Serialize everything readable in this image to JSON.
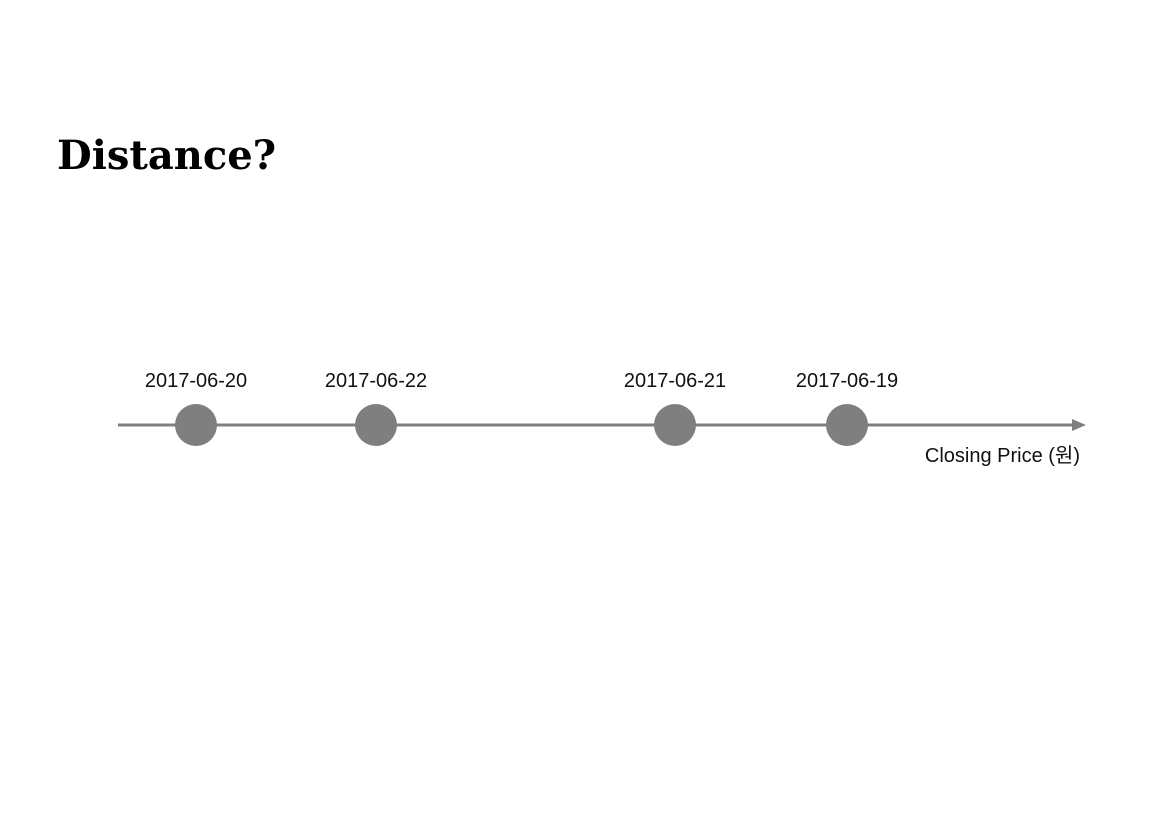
{
  "title": "Distance?",
  "colors": {
    "axis": "#7f7f7f",
    "point": "#7f7f7f",
    "text": "#111111"
  },
  "chart_data": {
    "type": "scatter",
    "xlabel": "Closing Price (원)",
    "ylabel": "",
    "points": [
      {
        "label": "2017-06-20",
        "order": 1
      },
      {
        "label": "2017-06-22",
        "order": 2
      },
      {
        "label": "2017-06-21",
        "order": 3
      },
      {
        "label": "2017-06-19",
        "order": 4
      }
    ],
    "axis_ticks": false,
    "grid": false,
    "legend": "none"
  }
}
